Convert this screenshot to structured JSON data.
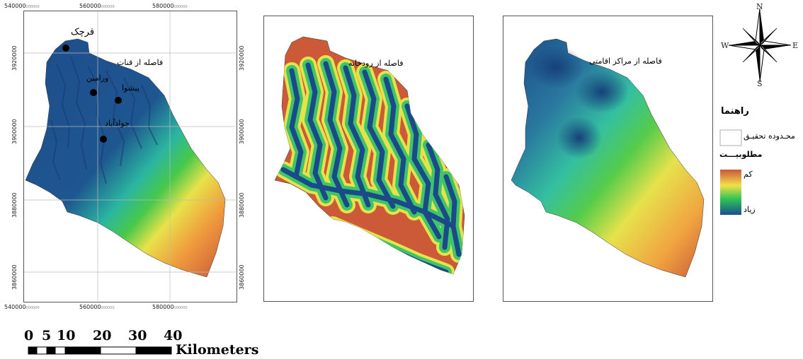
{
  "panels": [
    {
      "title": "فاصله از قنات"
    },
    {
      "title": "فاصله از رودخانه"
    },
    {
      "title": "فاصله از مراکز اقامتی"
    }
  ],
  "cities": [
    {
      "name": "قرچک"
    },
    {
      "name": "ورامین"
    },
    {
      "name": "پیشوا"
    },
    {
      "name": "جوادآباد"
    }
  ],
  "axes": {
    "x_ticks": [
      "540000",
      "560000",
      "580000"
    ],
    "y_ticks": [
      "3920000",
      "3900000",
      "3880000",
      "3860000"
    ],
    "tick_unit": "000000"
  },
  "compass": {
    "north": "N",
    "south": "S",
    "east": "E",
    "west": "W"
  },
  "legend": {
    "title": "راهنما",
    "boundary_label": "محـدوده تحقیـق",
    "desirability_label": "مطلوبیـــت",
    "low_label": "کم",
    "high_label": "زیاد",
    "colors": {
      "low": "#c9563a",
      "mid_low": "#f3e04a",
      "mid": "#2ec455",
      "high": "#1b4f8f"
    }
  },
  "scale_bar": {
    "numbers": [
      "0",
      "5",
      "10",
      "20",
      "30",
      "40"
    ],
    "unit": "Kilometers"
  }
}
